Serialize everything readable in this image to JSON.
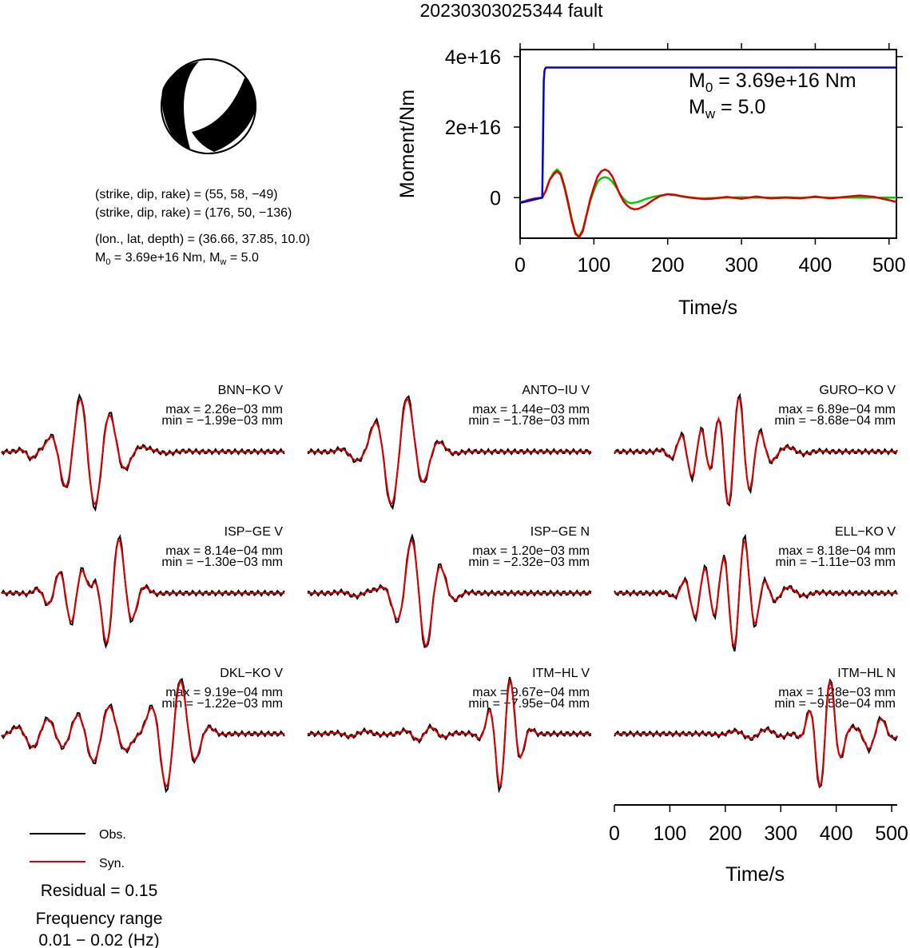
{
  "title": "20230303025344 fault",
  "mechanism": {
    "plane1": "(strike, dip, rake) = (55, 58, −49)",
    "plane2": "(strike, dip, rake) = (176, 50, −136)",
    "location": "(lon., lat, depth) = (36.66, 37.85, 10.0)",
    "moment_line": "M0 = 3.69e+16 Nm, Mw = 5.0",
    "moment_line_parts": {
      "m": "M",
      "m_sub": "0",
      "m_val": " = 3.69e+16 Nm, M",
      "w_sub": "w",
      "w_val": " = 5.0"
    },
    "beachball": {
      "strike": 55,
      "dip": 58,
      "rake": -49,
      "fill_color": "#000000"
    }
  },
  "chart_data": [
    {
      "type": "line",
      "title": "",
      "xlabel": "Time/s",
      "ylabel": "Moment/Nm",
      "xlim": [
        0,
        510
      ],
      "ylim": [
        -1.15e+16,
        4.2e+16
      ],
      "xticks": [
        0,
        100,
        200,
        300,
        400,
        500
      ],
      "xtick_labels": [
        "0",
        "100",
        "200",
        "300",
        "400",
        "500"
      ],
      "yticks": [
        0,
        2e+16,
        4e+16
      ],
      "ytick_labels": [
        "0",
        "2e+16",
        "4e+16"
      ],
      "annotation": {
        "m0_label": "M",
        "m0_sub": "0",
        "m0_text": " = 3.69e+16 Nm",
        "mw_label": "M",
        "mw_sub": "w",
        "mw_text": " = 5.0"
      },
      "series": [
        {
          "color": "#0000cc",
          "x": [
            0,
            30,
            31,
            32,
            33,
            34,
            35,
            36,
            510
          ],
          "y": [
            -1500000000000000.0,
            0,
            1.5e+16,
            3.3e+16,
            3.6e+16,
            3.66e+16,
            3.69e+16,
            3.69e+16,
            3.69e+16
          ]
        },
        {
          "color": "#00cc00",
          "x": [
            0,
            10,
            20,
            30,
            35,
            40,
            45,
            50,
            55,
            60,
            65,
            70,
            75,
            80,
            85,
            90,
            95,
            100,
            105,
            110,
            115,
            120,
            125,
            130,
            135,
            140,
            145,
            150,
            160,
            170,
            180,
            190,
            200,
            210,
            220,
            230,
            240,
            250,
            260,
            280,
            300,
            320,
            340,
            360,
            380,
            400,
            420,
            440,
            460,
            480,
            500,
            510
          ],
          "y": [
            -1200000000000000.0,
            -900000000000000.0,
            -400000000000000.0,
            0,
            2000000000000000.0,
            5000000000000000.0,
            7000000000000000.0,
            8000000000000000.0,
            7000000000000000.0,
            3500000000000000.0,
            -1000000000000000.0,
            -6000000000000000.0,
            -1e+16,
            -1.1e+16,
            -9000000000000000.0,
            -5000000000000000.0,
            -1000000000000000.0,
            2000000000000000.0,
            4500000000000000.0,
            5500000000000000.0,
            5800000000000000.0,
            5500000000000000.0,
            4500000000000000.0,
            3000000000000000.0,
            1200000000000000.0,
            -300000000000000.0,
            -1200000000000000.0,
            -1600000000000000.0,
            -1200000000000000.0,
            -400000000000000.0,
            200000000000000.0,
            600000000000000.0,
            900000000000000.0,
            700000000000000.0,
            400000000000000.0,
            100000000000000.0,
            -100000000000000.0,
            -200000000000000.0,
            -100000000000000.0,
            0,
            100000000000000.0,
            0,
            0,
            100000000000000.0,
            0,
            100000000000000.0,
            0,
            0,
            0,
            0,
            0,
            0
          ]
        },
        {
          "color": "#dd0000",
          "x": [
            0,
            10,
            20,
            30,
            35,
            40,
            45,
            50,
            55,
            60,
            65,
            70,
            75,
            80,
            85,
            90,
            95,
            100,
            105,
            110,
            115,
            120,
            125,
            130,
            135,
            140,
            145,
            150,
            155,
            160,
            170,
            180,
            190,
            200,
            210,
            220,
            230,
            240,
            250,
            260,
            280,
            300,
            320,
            340,
            360,
            380,
            400,
            420,
            440,
            460,
            480,
            500,
            510
          ],
          "y": [
            -1500000000000000.0,
            -700000000000000.0,
            -200000000000000.0,
            0,
            2000000000000000.0,
            5000000000000000.0,
            6500000000000000.0,
            7500000000000000.0,
            6500000000000000.0,
            3000000000000000.0,
            -1500000000000000.0,
            -6500000000000000.0,
            -1.03e+16,
            -1.12e+16,
            -9500000000000000.0,
            -5000000000000000.0,
            -500000000000000.0,
            3000000000000000.0,
            6000000000000000.0,
            7500000000000000.0,
            8000000000000000.0,
            7500000000000000.0,
            6000000000000000.0,
            3500000000000000.0,
            1000000000000000.0,
            -1000000000000000.0,
            -2200000000000000.0,
            -3000000000000000.0,
            -3300000000000000.0,
            -3200000000000000.0,
            -2200000000000000.0,
            -700000000000000.0,
            500000000000000.0,
            1000000000000000.0,
            800000000000000.0,
            300000000000000.0,
            0,
            -200000000000000.0,
            -400000000000000.0,
            -300000000000000.0,
            200000000000000.0,
            -300000000000000.0,
            300000000000000.0,
            -200000000000000.0,
            0,
            -200000000000000.0,
            300000000000000.0,
            -200000000000000.0,
            200000000000000.0,
            600000000000000.0,
            200000000000000.0,
            -700000000000000.0,
            -1200000000000000.0
          ]
        }
      ]
    }
  ],
  "waveforms": {
    "colors": {
      "obs": "#000000",
      "syn": "#dd0000"
    },
    "stations": [
      {
        "name": "BNN−KO V",
        "max": "max = 2.26e−03 mm",
        "min": "min = −1.99e−03 mm"
      },
      {
        "name": "ANTO−IU V",
        "max": "max = 1.44e−03 mm",
        "min": "min = −1.78e−03 mm"
      },
      {
        "name": "GURO−KO V",
        "max": "max = 6.89e−04 mm",
        "min": "min = −8.68e−04 mm"
      },
      {
        "name": "ISP−GE V",
        "max": "max = 8.14e−04 mm",
        "min": "min = −1.30e−03 mm"
      },
      {
        "name": "ISP−GE N",
        "max": "max = 1.20e−03 mm",
        "min": "min = −2.32e−03 mm"
      },
      {
        "name": "ELL−KO V",
        "max": "max = 8.18e−04 mm",
        "min": "min = −1.11e−03 mm"
      },
      {
        "name": "DKL−KO V",
        "max": "max = 9.19e−04 mm",
        "min": "min = −1.22e−03 mm"
      },
      {
        "name": "ITM−HL V",
        "max": "max = 9.67e−04 mm",
        "min": "min = −7.95e−04 mm"
      },
      {
        "name": "ITM−HL N",
        "max": "max = 1.28e−03 mm",
        "min": "min = −9.58e−04 mm"
      }
    ],
    "time_axis": {
      "xlabel": "Time/s",
      "xlim": [
        0,
        510
      ],
      "xticks": [
        0,
        100,
        200,
        300,
        400,
        500
      ],
      "xtick_labels": [
        "0",
        "100",
        "200",
        "300",
        "400",
        "500"
      ]
    }
  },
  "legend": {
    "obs_label": "Obs.",
    "syn_label": "Syn.",
    "residual": "Residual = 0.15",
    "freq_title": "Frequency range",
    "freq_value": "0.01 − 0.02 (Hz)"
  }
}
